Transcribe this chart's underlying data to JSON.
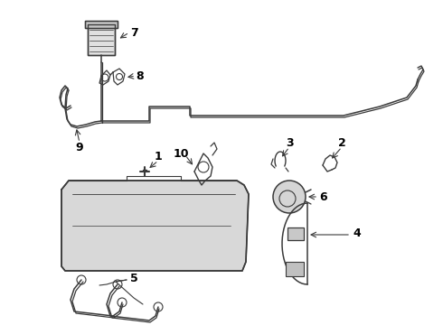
{
  "bg_color": "#ffffff",
  "lc": "#3a3a3a",
  "label_color": "#000000",
  "figsize": [
    4.9,
    3.6
  ],
  "dpi": 100,
  "xlim": [
    0,
    490
  ],
  "ylim": [
    360,
    0
  ]
}
